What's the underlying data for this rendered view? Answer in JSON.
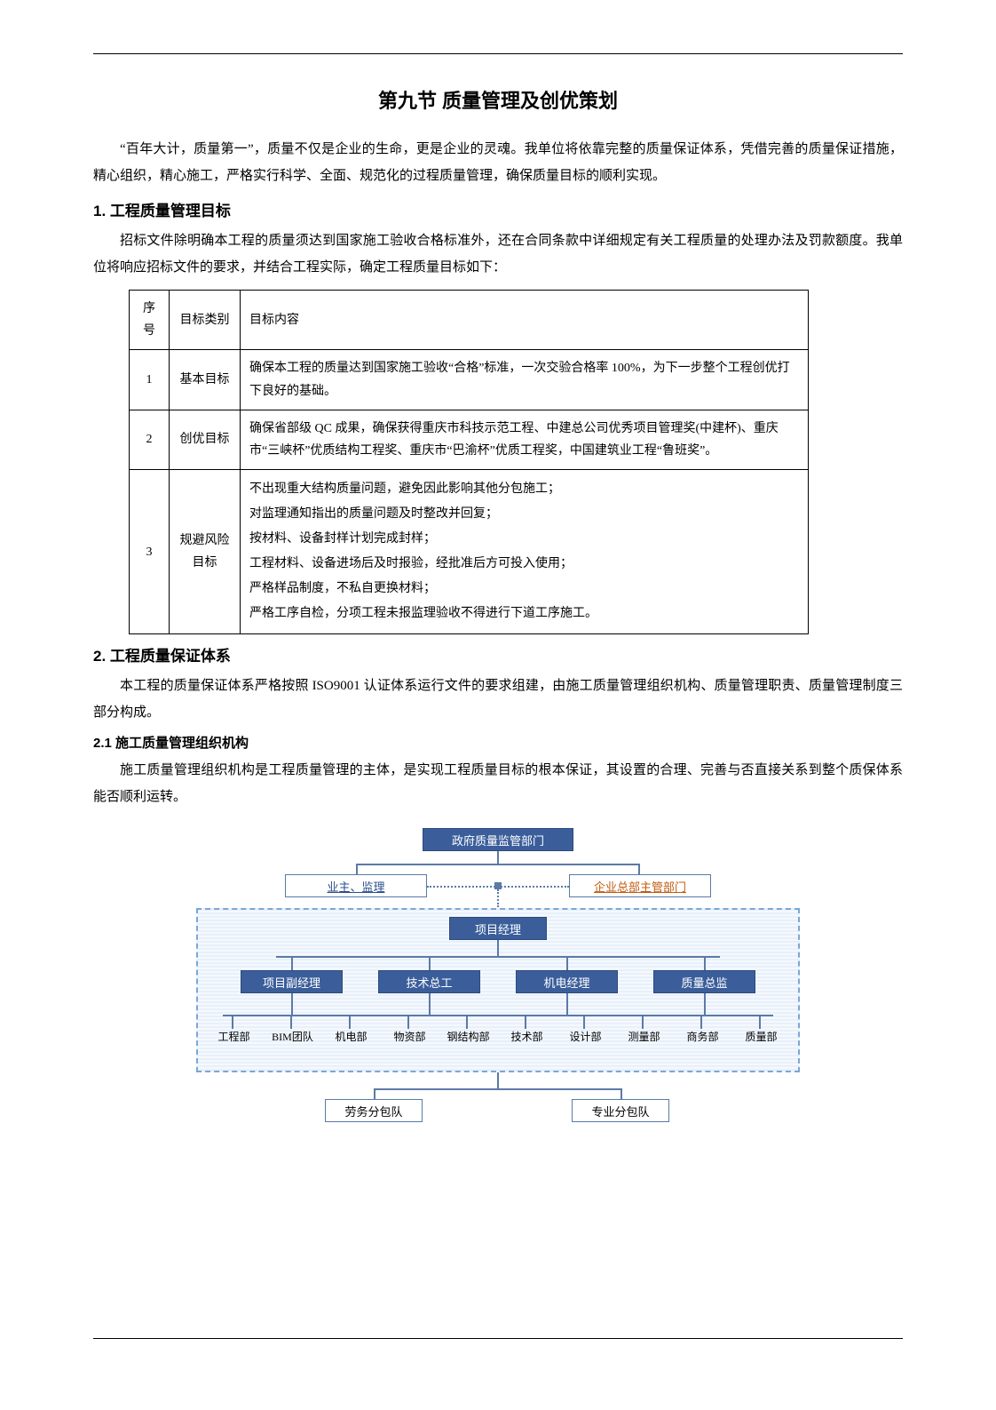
{
  "title": "第九节  质量管理及创优策划",
  "intro": "“百年大计，质量第一”，质量不仅是企业的生命，更是企业的灵魂。我单位将依靠完整的质量保证体系，凭借完善的质量保证措施，精心组织，精心施工，严格实行科学、全面、规范化的过程质量管理，确保质量目标的顺利实现。",
  "h1_1": "1.  工程质量管理目标",
  "p1": "招标文件除明确本工程的质量须达到国家施工验收合格标准外，还在合同条款中详细规定有关工程质量的处理办法及罚款额度。我单位将响应招标文件的要求，并结合工程实际，确定工程质量目标如下：",
  "table": {
    "headers": [
      "序号",
      "目标类别",
      "目标内容"
    ],
    "rows": [
      {
        "seq": "1",
        "cat": "基本目标",
        "content": "确保本工程的质量达到国家施工验收“合格”标准，一次交验合格率 100%，为下一步整个工程创优打下良好的基础。"
      },
      {
        "seq": "2",
        "cat": "创优目标",
        "content": "确保省部级 QC 成果，确保获得重庆市科技示范工程、中建总公司优秀项目管理奖(中建杯)、重庆市“三峡杯”优质结构工程奖、重庆市“巴渝杯”优质工程奖，中国建筑业工程“鲁班奖”。"
      },
      {
        "seq": "3",
        "cat": "规避风险目标",
        "risk_items": [
          "不出现重大结构质量问题，避免因此影响其他分包施工；",
          "对监理通知指出的质量问题及时整改并回复；",
          "按材料、设备封样计划完成封样；",
          "工程材料、设备进场后及时报验，经批准后方可投入使用；",
          "严格样品制度，不私自更换材料；",
          "严格工序自检，分项工程未报监理验收不得进行下道工序施工。"
        ]
      }
    ]
  },
  "h1_2": "2.  工程质量保证体系",
  "p2": "本工程的质量保证体系严格按照 ISO9001 认证体系运行文件的要求组建，由施工质量管理组织机构、质量管理职责、质量管理制度三部分构成。",
  "h2_1": "2.1  施工质量管理组织机构",
  "p3": "施工质量管理组织机构是工程质量管理的主体，是实现工程质量目标的根本保证，其设置的合理、完善与否直接关系到整个质保体系能否顺利运转。",
  "org": {
    "top": "政府质量监管部门",
    "owner": "业主、监理",
    "hq": "企业总部主管部门",
    "pm": "项目经理",
    "mgrs": [
      "项目副经理",
      "技术总工",
      "机电经理",
      "质量总监"
    ],
    "depts": [
      "工程部",
      "BIM团队",
      "机电部",
      "物资部",
      "钢结构部",
      "技术部",
      "设计部",
      "测量部",
      "商务部",
      "质量部"
    ],
    "sub1": "劳务分包队",
    "sub2": "专业分包队",
    "colors": {
      "blue_fill": "#3b5e9b",
      "border": "#5b7aa6",
      "owner_text": "#2b4e8c",
      "hq_text": "#c05b10",
      "dash_border": "#7ba7d6",
      "dash_bg1": "#e8f0fa",
      "dash_bg2": "#f5f9fd"
    }
  }
}
